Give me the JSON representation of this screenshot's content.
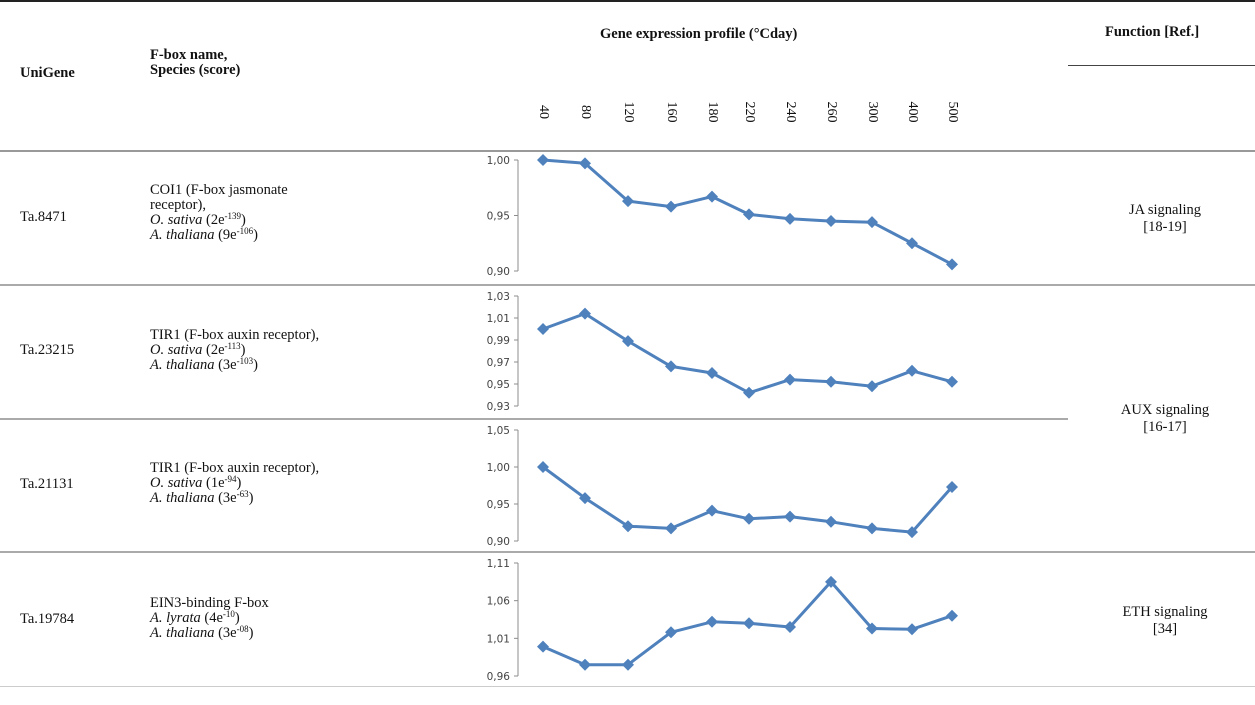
{
  "header": {
    "unigene": "UniGene",
    "fbox_line1": "F-box name,",
    "fbox_line2": "Species (score)",
    "profile": "Gene expression profile (°Cday)",
    "function": "Function [Ref.]"
  },
  "x_ticks": [
    "40",
    "80",
    "120",
    "160",
    "180",
    "220",
    "240",
    "260",
    "300",
    "400",
    "500"
  ],
  "rows": [
    {
      "id": "Ta.8471",
      "name_a": "COI1 (F-box jasmonate",
      "name_b": "receptor),",
      "sp1": "O. sativa",
      "sc1_pre": " (2e",
      "sc1_exp": "-139",
      "sc1_post": ")",
      "sp2": "A. thaliana",
      "sc2_pre": " (9e",
      "sc2_exp": "-106",
      "sc2_post": ")"
    },
    {
      "id": "Ta.23215",
      "name_a": "TIR1 (F-box auxin receptor),",
      "sp1": "O. sativa",
      "sc1_pre": " (2e",
      "sc1_exp": "-113",
      "sc1_post": ")",
      "sp2": "A. thaliana",
      "sc2_pre": " (3e",
      "sc2_exp": "-103",
      "sc2_post": ")"
    },
    {
      "id": "Ta.21131",
      "name_a": "TIR1 (F-box auxin receptor),",
      "sp1": "O. sativa",
      "sc1_pre": " (1e",
      "sc1_exp": "-94",
      "sc1_post": ")",
      "sp2": "A. thaliana",
      "sc2_pre": " (3e",
      "sc2_exp": "-63",
      "sc2_post": ")"
    },
    {
      "id": "Ta.19784",
      "name_a": "EIN3-binding F-box",
      "sp1": "A. lyrata",
      "sc1_pre": " (4e",
      "sc1_exp": "-10",
      "sc1_post": ")",
      "sp2": "A. thaliana",
      "sc2_pre": " (3e",
      "sc2_exp": "-08",
      "sc2_post": ")"
    }
  ],
  "functions": {
    "ja": [
      "JA signaling",
      "[18-19]"
    ],
    "aux": [
      "AUX signaling",
      "[16-17]"
    ],
    "eth": [
      "ETH signaling",
      "[34]"
    ]
  },
  "colors": {
    "series": "#4f81bd",
    "axis": "#8c8c8c",
    "rule": "#999999"
  },
  "chart_data": [
    {
      "type": "line",
      "series_id": "Ta.8471",
      "x": [
        "40",
        "80",
        "120",
        "160",
        "180",
        "220",
        "240",
        "260",
        "300",
        "400",
        "500"
      ],
      "values": [
        1.0,
        0.997,
        0.963,
        0.958,
        0.967,
        0.951,
        0.947,
        0.945,
        0.944,
        0.925,
        0.906
      ],
      "yticks": [
        "1,00",
        "0,95",
        "0,90"
      ],
      "ylim": [
        0.9,
        1.0
      ]
    },
    {
      "type": "line",
      "series_id": "Ta.23215",
      "x": [
        "40",
        "80",
        "120",
        "160",
        "180",
        "220",
        "240",
        "260",
        "300",
        "400",
        "500"
      ],
      "values": [
        1.0,
        1.014,
        0.989,
        0.966,
        0.96,
        0.942,
        0.954,
        0.952,
        0.948,
        0.962,
        0.952
      ],
      "yticks": [
        "1,03",
        "1,01",
        "0,99",
        "0,97",
        "0,95",
        "0,93"
      ],
      "ylim": [
        0.93,
        1.03
      ]
    },
    {
      "type": "line",
      "series_id": "Ta.21131",
      "x": [
        "40",
        "80",
        "120",
        "160",
        "180",
        "220",
        "240",
        "260",
        "300",
        "400",
        "500"
      ],
      "values": [
        1.0,
        0.958,
        0.92,
        0.917,
        0.941,
        0.93,
        0.933,
        0.926,
        0.917,
        0.912,
        0.973
      ],
      "yticks": [
        "1,05",
        "1,00",
        "0,95",
        "0,90"
      ],
      "ylim": [
        0.9,
        1.05
      ]
    },
    {
      "type": "line",
      "series_id": "Ta.19784",
      "x": [
        "40",
        "80",
        "120",
        "160",
        "180",
        "220",
        "240",
        "260",
        "300",
        "400",
        "500"
      ],
      "values": [
        0.999,
        0.975,
        0.975,
        1.018,
        1.032,
        1.03,
        1.025,
        1.085,
        1.023,
        1.022,
        1.04
      ],
      "yticks": [
        "1,11",
        "1,06",
        "1,01",
        "0,96"
      ],
      "ylim": [
        0.96,
        1.11
      ]
    }
  ]
}
